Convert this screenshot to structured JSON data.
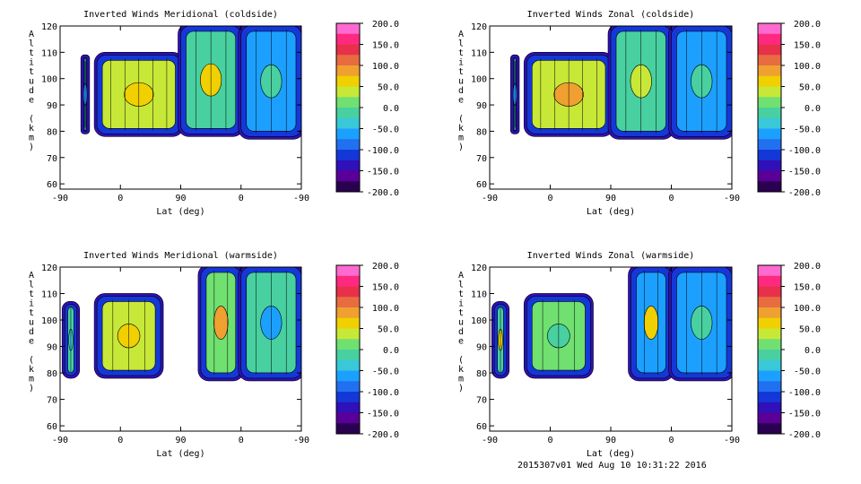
{
  "footer": "2015307v01 Wed Aug 10 10:31:22 2016",
  "colorbar": {
    "labels": [
      "200.0",
      "150.0",
      "100.0",
      "50.0",
      "0.0",
      "-50.0",
      "-100.0",
      "-150.0",
      "-200.0"
    ],
    "colors": [
      "#ff6ad0",
      "#ff2a80",
      "#e8304a",
      "#e86c40",
      "#f0a030",
      "#f0d000",
      "#c8e838",
      "#70e070",
      "#48d0a0",
      "#38c8d8",
      "#1ca0ff",
      "#2070f0",
      "#1438d8",
      "#3010b8",
      "#5a0098",
      "#2a0050"
    ]
  },
  "chart_data": [
    {
      "id": "merid-cold",
      "type": "heatmap",
      "title": "Inverted Winds Meridional (coldside)",
      "xlabel": "Lat (deg)",
      "ylabel": "Altitude (km)",
      "xticks": [
        "-90",
        "0",
        "90",
        "0",
        "-90"
      ],
      "yticks": [
        "60",
        "70",
        "80",
        "90",
        "100",
        "110",
        "120"
      ],
      "ylim": [
        58,
        120
      ],
      "blobs": [
        {
          "x": [
            -55,
            -50
          ],
          "y": [
            80,
            108
          ],
          "fill": "#38c8d8",
          "core": "#1ca0ff"
        },
        {
          "x": [
            -35,
            90
          ],
          "y": [
            79,
            109
          ],
          "fill": "#c8e838",
          "core": "#f0d000"
        },
        {
          "x": [
            90,
            180
          ],
          "y": [
            79,
            120
          ],
          "fill": "#48d0a0",
          "core": "#f0d000"
        },
        {
          "x": [
            180,
            270
          ],
          "y": [
            78,
            120
          ],
          "fill": "#1ca0ff",
          "core": "#48d0a0"
        }
      ]
    },
    {
      "id": "zonal-cold",
      "type": "heatmap",
      "title": "Inverted Winds Zonal (coldside)",
      "xlabel": "Lat (deg)",
      "ylabel": "Altitude (km)",
      "xticks": [
        "-90",
        "0",
        "90",
        "0",
        "-90"
      ],
      "yticks": [
        "60",
        "70",
        "80",
        "90",
        "100",
        "110",
        "120"
      ],
      "ylim": [
        58,
        120
      ],
      "blobs": [
        {
          "x": [
            -55,
            -50
          ],
          "y": [
            80,
            108
          ],
          "fill": "#38c8d8",
          "core": "#1ca0ff"
        },
        {
          "x": [
            -35,
            90
          ],
          "y": [
            79,
            109
          ],
          "fill": "#c8e838",
          "core": "#f0a030"
        },
        {
          "x": [
            90,
            180
          ],
          "y": [
            78,
            120
          ],
          "fill": "#48d0a0",
          "core": "#c8e838"
        },
        {
          "x": [
            180,
            270
          ],
          "y": [
            78,
            120
          ],
          "fill": "#1ca0ff",
          "core": "#48d0a0"
        }
      ]
    },
    {
      "id": "merid-warm",
      "type": "heatmap",
      "title": "Inverted Winds Meridional (warmside)",
      "xlabel": "Lat (deg)",
      "ylabel": "Altitude (km)",
      "xticks": [
        "-90",
        "0",
        "90",
        "0",
        "-90"
      ],
      "yticks": [
        "60",
        "70",
        "80",
        "90",
        "100",
        "110",
        "120"
      ],
      "ylim": [
        58,
        120
      ],
      "blobs": [
        {
          "x": [
            -83,
            -65
          ],
          "y": [
            79,
            106
          ],
          "fill": "#48d0a0",
          "core": "#38c8d8"
        },
        {
          "x": [
            -35,
            60
          ],
          "y": [
            79,
            109
          ],
          "fill": "#c8e838",
          "core": "#f0d000"
        },
        {
          "x": [
            120,
            180
          ],
          "y": [
            78,
            120
          ],
          "fill": "#70e070",
          "core": "#f0a030"
        },
        {
          "x": [
            180,
            270
          ],
          "y": [
            78,
            120
          ],
          "fill": "#48d0a0",
          "core": "#1ca0ff"
        }
      ]
    },
    {
      "id": "zonal-warm",
      "type": "heatmap",
      "title": "Inverted Winds Zonal (warmside)",
      "xlabel": "Lat (deg)",
      "ylabel": "Altitude (km)",
      "xticks": [
        "-90",
        "0",
        "90",
        "0",
        "-90"
      ],
      "yticks": [
        "60",
        "70",
        "80",
        "90",
        "100",
        "110",
        "120"
      ],
      "ylim": [
        58,
        120
      ],
      "blobs": [
        {
          "x": [
            -83,
            -65
          ],
          "y": [
            79,
            106
          ],
          "fill": "#48d0a0",
          "core": "#f0d000"
        },
        {
          "x": [
            -35,
            60
          ],
          "y": [
            79,
            109
          ],
          "fill": "#70e070",
          "core": "#48d0a0"
        },
        {
          "x": [
            120,
            180
          ],
          "y": [
            78,
            120
          ],
          "fill": "#1ca0ff",
          "core": "#f0d000"
        },
        {
          "x": [
            180,
            270
          ],
          "y": [
            78,
            120
          ],
          "fill": "#1ca0ff",
          "core": "#48d0a0"
        }
      ]
    }
  ]
}
